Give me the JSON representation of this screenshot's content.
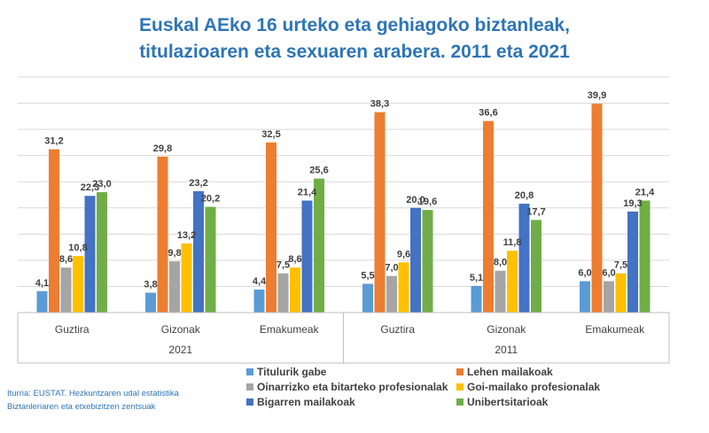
{
  "chart_data": {
    "type": "bar",
    "title": [
      "Euskal AEko 16 urteko eta gehiagoko biztanleak,",
      "titulazioaren eta sexuaren arabera. 2011 eta 2021"
    ],
    "groups": [
      {
        "label": "2021",
        "categories": [
          "Guztira",
          "Gizonak",
          "Emakumeak"
        ]
      },
      {
        "label": "2011",
        "categories": [
          "Guztira",
          "Gizonak",
          "Emakumeak"
        ]
      }
    ],
    "series": [
      {
        "name": "Titulurik gabe",
        "color": "#5B9BD5",
        "values": [
          4.1,
          3.8,
          4.4,
          5.5,
          5.1,
          6.0
        ]
      },
      {
        "name": "Lehen mailakoak",
        "color": "#ED7D31",
        "values": [
          31.2,
          29.8,
          32.5,
          38.3,
          36.6,
          39.9
        ]
      },
      {
        "name": "Oinarrizko eta bitarteko profesionalak",
        "color": "#A5A5A5",
        "values": [
          8.6,
          9.8,
          7.5,
          7.0,
          8.0,
          6.0
        ]
      },
      {
        "name": "Goi-mailako profesionalak",
        "color": "#FFC000",
        "values": [
          10.8,
          13.2,
          8.6,
          9.6,
          11.8,
          7.5
        ]
      },
      {
        "name": "Bigarren mailakoak",
        "color": "#4472C4",
        "values": [
          22.3,
          23.2,
          21.4,
          20.0,
          20.8,
          19.3
        ]
      },
      {
        "name": "Unibertsitarioak",
        "color": "#70AD47",
        "values": [
          23.0,
          20.2,
          25.6,
          19.6,
          17.7,
          21.4
        ]
      }
    ],
    "value_labels": [
      [
        "4,1",
        "3,8",
        "4,4",
        "5,5",
        "5,1",
        "6,0"
      ],
      [
        "31,2",
        "29,8",
        "32,5",
        "38,3",
        "36,6",
        "39,9"
      ],
      [
        "8,6",
        "9,8",
        "7,5",
        "7,0",
        "8,0",
        "6,0"
      ],
      [
        "10,8",
        "13,2",
        "8,6",
        "9,6",
        "11,8",
        "7,5"
      ],
      [
        "22,3",
        "23,2",
        "21,4",
        "20,0",
        "20,8",
        "19,3"
      ],
      [
        "23,0",
        "20,2",
        "25,6",
        "19,6",
        "17,7",
        "21,4"
      ]
    ],
    "ylim": [
      0,
      45
    ],
    "grid": true,
    "legend": "bottom"
  },
  "source": [
    "Iturria: EUSTAT. Hezkuntzaren udal estatistika",
    "Biztanleriaren eta etxebizitzen zentsuak"
  ]
}
